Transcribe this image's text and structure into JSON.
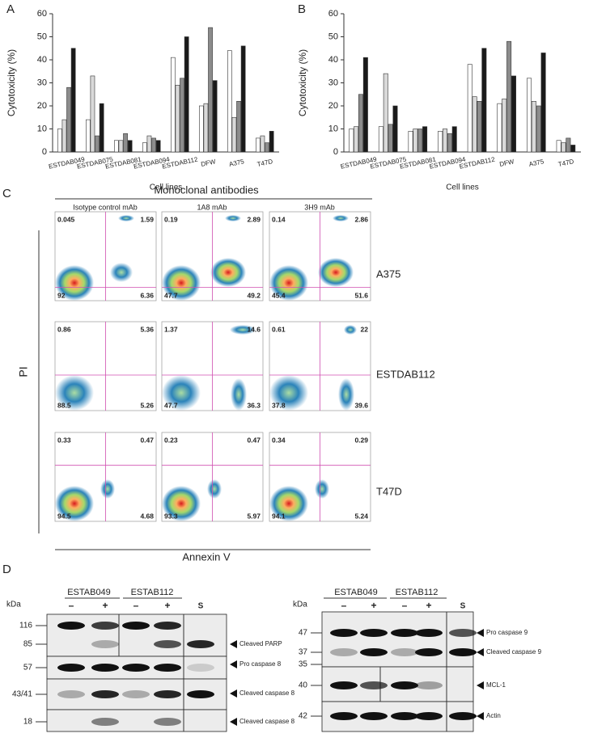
{
  "chart_data": [
    {
      "type": "bar",
      "panel_label": "A",
      "y_label": "Cytotoxicity (%)",
      "x_label": "Cell lines",
      "categories": [
        "ESTDAB049",
        "ESTDAB075",
        "ESTDAB081",
        "ESTDAB094",
        "ESTDAB112",
        "DFW",
        "A375",
        "T47D"
      ],
      "series": [
        {
          "color": "#ffffff",
          "values": [
            10,
            14,
            5,
            4,
            41,
            20,
            44,
            6
          ]
        },
        {
          "color": "#d9d9d9",
          "values": [
            14,
            33,
            5,
            7,
            29,
            21,
            15,
            7
          ]
        },
        {
          "color": "#8c8c8c",
          "values": [
            28,
            7,
            8,
            6,
            32,
            54,
            22,
            4
          ]
        },
        {
          "color": "#1a1a1a",
          "values": [
            45,
            21,
            5,
            5,
            50,
            31,
            46,
            9
          ]
        }
      ],
      "ylim": [
        0,
        60
      ],
      "yticks": [
        0,
        10,
        20,
        30,
        40,
        50,
        60
      ]
    },
    {
      "type": "bar",
      "panel_label": "B",
      "y_label": "Cytotoxicity (%)",
      "x_label": "Cell lines",
      "categories": [
        "ESTDAB049",
        "ESTDAB075",
        "ESTDAB081",
        "ESTDAB094",
        "ESTDAB112",
        "DFW",
        "A375",
        "T47D"
      ],
      "series": [
        {
          "color": "#ffffff",
          "values": [
            10,
            11,
            9,
            9,
            38,
            21,
            32,
            5
          ]
        },
        {
          "color": "#d9d9d9",
          "values": [
            11,
            34,
            10,
            10,
            24,
            23,
            22,
            4
          ]
        },
        {
          "color": "#8c8c8c",
          "values": [
            25,
            12,
            10,
            8,
            22,
            48,
            20,
            6
          ]
        },
        {
          "color": "#1a1a1a",
          "values": [
            41,
            20,
            11,
            11,
            45,
            33,
            43,
            3
          ]
        }
      ],
      "ylim": [
        0,
        60
      ],
      "yticks": [
        0,
        10,
        20,
        30,
        40,
        50,
        60
      ]
    }
  ],
  "flow_cytometry": {
    "panel_label": "C",
    "title": "Monoclonal antibodies",
    "y_label": "PI",
    "x_label": "Annexin V",
    "columns": [
      "Isotype control mAb",
      "1A8 mAb",
      "3H9 mAb"
    ],
    "rows": [
      {
        "label": "A375",
        "quadrants": [
          [
            "0.045",
            "1.59",
            "92",
            "6.36"
          ],
          [
            "0.19",
            "2.89",
            "47.7",
            "49.2"
          ],
          [
            "0.14",
            "2.86",
            "45.4",
            "51.6"
          ]
        ]
      },
      {
        "label": "ESTDAB112",
        "quadrants": [
          [
            "0.86",
            "5.36",
            "88.5",
            "5.26"
          ],
          [
            "1.37",
            "14.6",
            "47.7",
            "36.3"
          ],
          [
            "0.61",
            "22",
            "37.8",
            "39.6"
          ]
        ]
      },
      {
        "label": "T47D",
        "quadrants": [
          [
            "0.33",
            "0.47",
            "94.5",
            "4.68"
          ],
          [
            "0.23",
            "0.47",
            "93.3",
            "5.97"
          ],
          [
            "0.34",
            "0.29",
            "94.1",
            "5.24"
          ]
        ]
      }
    ]
  },
  "western_blots": {
    "panel_label": "D",
    "blots": [
      {
        "unit": "kDa",
        "groups": [
          "ESTAB049",
          "ESTAB112"
        ],
        "lane_signs": [
          "–",
          "+",
          "–",
          "+"
        ],
        "standard": "S",
        "markers": [
          "116",
          "85",
          "57",
          "43/41",
          "18"
        ],
        "bands": [
          "Cleaved PARP",
          "Pro caspase 8",
          "Cleaved caspase 8",
          "Cleaved caspase 8"
        ]
      },
      {
        "unit": "kDa",
        "groups": [
          "ESTAB049",
          "ESTAB112"
        ],
        "lane_signs": [
          "–",
          "+",
          "–",
          "+"
        ],
        "standard": "S",
        "markers": [
          "47",
          "37",
          "35",
          "40",
          "42"
        ],
        "bands": [
          "Pro caspase 9",
          "Cleaved caspase 9",
          "MCL-1",
          "Actin"
        ]
      }
    ]
  }
}
